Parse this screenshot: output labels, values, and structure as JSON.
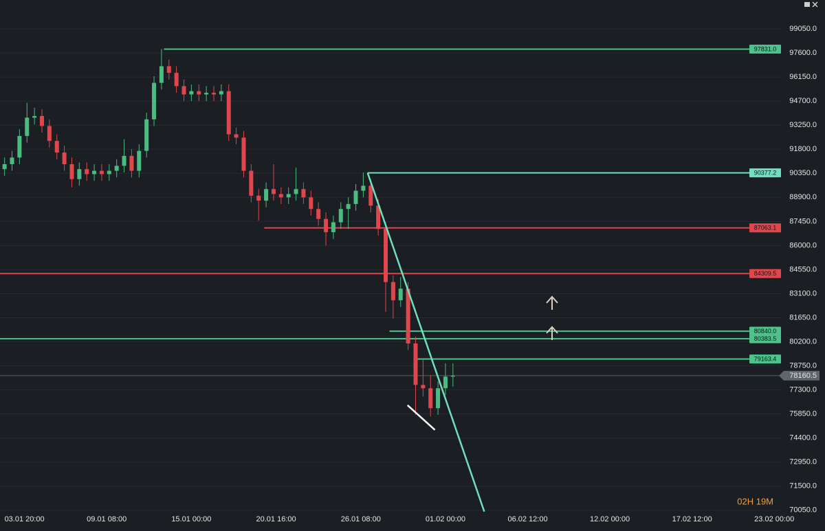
{
  "chart_data": {
    "type": "candlestick",
    "color_up": "#4cbb82",
    "color_down": "#e0474c",
    "xlim": [
      "02.01 04:40",
      "23.02 13:00"
    ],
    "ylim": [
      68800,
      100790
    ],
    "grid": true,
    "xticks": [
      "03.01 20:00",
      "09.01 08:00",
      "15.01 00:00",
      "20.01 16:00",
      "26.01 08:00",
      "01.02 00:00",
      "06.02 12:00",
      "12.02 00:00",
      "17.02 12:00",
      "23.02 00:00"
    ],
    "yticks": [
      {
        "value": 99050,
        "label": "99050.0"
      },
      {
        "value": 97600,
        "label": "97600.0"
      },
      {
        "value": 96150,
        "label": "96150.0"
      },
      {
        "value": 94700,
        "label": "94700.0"
      },
      {
        "value": 93250,
        "label": "93250.0"
      },
      {
        "value": 91800,
        "label": "91800.0"
      },
      {
        "value": 90350,
        "label": "90350.0"
      },
      {
        "value": 88900,
        "label": "88900.0"
      },
      {
        "value": 87450,
        "label": "87450.0"
      },
      {
        "value": 86000,
        "label": "86000.0"
      },
      {
        "value": 84550,
        "label": "84550.0"
      },
      {
        "value": 83100,
        "label": "83100.0"
      },
      {
        "value": 81650,
        "label": "81650.0"
      },
      {
        "value": 80200,
        "label": "80200.0"
      },
      {
        "value": 78750,
        "label": "78750.0"
      },
      {
        "value": 77300,
        "label": "77300.0"
      },
      {
        "value": 75850,
        "label": "75850.0"
      },
      {
        "value": 74400,
        "label": "74400.0"
      },
      {
        "value": 72950,
        "label": "72950.0"
      },
      {
        "value": 71500,
        "label": "71500.0"
      },
      {
        "value": 70050,
        "label": "70050.0"
      }
    ],
    "x": [
      "02.01 12:00",
      "03.01 00:00",
      "03.01 12:00",
      "04.01 00:00",
      "04.01 12:00",
      "05.01 00:00",
      "05.01 12:00",
      "06.01 00:00",
      "06.01 12:00",
      "07.01 00:00",
      "07.01 12:00",
      "08.01 00:00",
      "08.01 12:00",
      "09.01 00:00",
      "09.01 12:00",
      "10.01 00:00",
      "10.01 12:00",
      "11.01 00:00",
      "11.01 12:00",
      "12.01 00:00",
      "12.01 12:00",
      "13.01 00:00",
      "13.01 12:00",
      "14.01 00:00",
      "14.01 12:00",
      "15.01 00:00",
      "15.01 12:00",
      "16.01 00:00",
      "16.01 12:00",
      "17.01 00:00",
      "17.01 12:00",
      "18.01 00:00",
      "18.01 12:00",
      "19.01 00:00",
      "19.01 12:00",
      "20.01 00:00",
      "20.01 12:00",
      "21.01 00:00",
      "21.01 12:00",
      "22.01 00:00",
      "22.01 12:00",
      "23.01 00:00",
      "23.01 12:00",
      "24.01 00:00",
      "24.01 12:00",
      "25.01 00:00",
      "25.01 12:00",
      "26.01 00:00",
      "26.01 12:00",
      "27.01 00:00",
      "27.01 12:00",
      "28.01 00:00",
      "28.01 12:00",
      "29.01 00:00",
      "29.01 12:00",
      "30.01 00:00",
      "30.01 12:00",
      "31.01 00:00",
      "31.01 12:00",
      "01.02 00:00",
      "01.02 12:00"
    ],
    "open": [
      90600,
      90900,
      91300,
      92600,
      93700,
      93800,
      93200,
      92300,
      91600,
      90900,
      90000,
      90600,
      90300,
      90500,
      90300,
      90500,
      90800,
      91400,
      90500,
      91700,
      93600,
      95800,
      96800,
      96400,
      95600,
      95100,
      95300,
      95100,
      95200,
      95100,
      95300,
      92700,
      92500,
      90500,
      89000,
      88700,
      89400,
      89100,
      88900,
      89100,
      89400,
      88900,
      88200,
      87600,
      86800,
      87400,
      88200,
      88500,
      89300,
      89600,
      88400,
      87000,
      83800,
      82700,
      83400,
      80100,
      77600,
      77400,
      76200,
      77400,
      78100
    ],
    "high": [
      91300,
      91700,
      93000,
      94600,
      94300,
      94200,
      93600,
      92700,
      92000,
      91300,
      91000,
      91000,
      90900,
      90900,
      90900,
      91200,
      92400,
      91800,
      92100,
      94000,
      96200,
      97831,
      97200,
      96800,
      96000,
      95700,
      95700,
      95600,
      95600,
      95700,
      95700,
      93100,
      92900,
      90900,
      89400,
      89800,
      90900,
      89500,
      89500,
      90700,
      89800,
      89300,
      88600,
      88000,
      87800,
      88600,
      88900,
      89700,
      90400,
      90000,
      88800,
      87400,
      84200,
      84100,
      83800,
      80500,
      79100,
      78200,
      77800,
      78900,
      78900
    ],
    "low": [
      90200,
      90500,
      90900,
      92200,
      93300,
      92800,
      91900,
      91200,
      90500,
      89500,
      89600,
      89900,
      89900,
      89900,
      89900,
      90100,
      90400,
      90100,
      90100,
      91300,
      93200,
      95400,
      96000,
      95200,
      94700,
      94700,
      94700,
      94700,
      94700,
      94700,
      92300,
      92100,
      90100,
      88600,
      87500,
      88300,
      88700,
      88500,
      88500,
      88700,
      88500,
      87800,
      87200,
      86000,
      86400,
      87000,
      87000,
      88100,
      88900,
      88000,
      86600,
      82000,
      81600,
      82300,
      79700,
      75800,
      76900,
      75700,
      75800,
      77000,
      77500
    ],
    "close": [
      90900,
      91300,
      92600,
      93700,
      93800,
      93200,
      92300,
      91600,
      90900,
      90000,
      90600,
      90300,
      90500,
      90300,
      90500,
      90800,
      91400,
      90500,
      91700,
      93600,
      95800,
      96800,
      96400,
      95600,
      95100,
      95300,
      95100,
      95200,
      95100,
      95300,
      92700,
      92500,
      90500,
      89000,
      88700,
      89400,
      89100,
      88900,
      89100,
      89400,
      88900,
      88200,
      87600,
      86800,
      87400,
      88200,
      88500,
      89300,
      89600,
      88400,
      87000,
      83800,
      82700,
      83400,
      80100,
      77600,
      77400,
      76200,
      77400,
      78100,
      78160
    ],
    "levels": [
      {
        "value": 97831,
        "label": "97831.0",
        "color": "#4cc38a",
        "start": "13.01 04:00"
      },
      {
        "value": 90377.2,
        "color": "#6fe0bf",
        "start": "26.01 19:00"
      },
      {
        "value": 87063.1,
        "color": "#e0474c",
        "start": "19.01 21:00"
      },
      {
        "value": 84309.5,
        "color": "#e0474c",
        "start": "02.01 04:40"
      },
      {
        "value": 80840,
        "label": "80840.0",
        "color": "#4cc38a",
        "start": "28.01 06:00"
      },
      {
        "value": 80383.5,
        "color": "#4cc38a",
        "start": "02.01 04:40"
      },
      {
        "value": 79163.4,
        "color": "#4cc38a",
        "start": "29.01 23:00"
      }
    ],
    "trendlines": [
      {
        "x": [
          "26.01 19:00",
          "03.02 14:20"
        ],
        "y": [
          90377.2,
          69970
        ],
        "color": "#6fe0bf"
      },
      {
        "x": [
          "29.01 11:00",
          "31.01 07:00"
        ],
        "y": [
          76380,
          74890
        ],
        "color": "#ffffff"
      }
    ],
    "last_price": 78160.5,
    "countdown": "02H 19M"
  }
}
